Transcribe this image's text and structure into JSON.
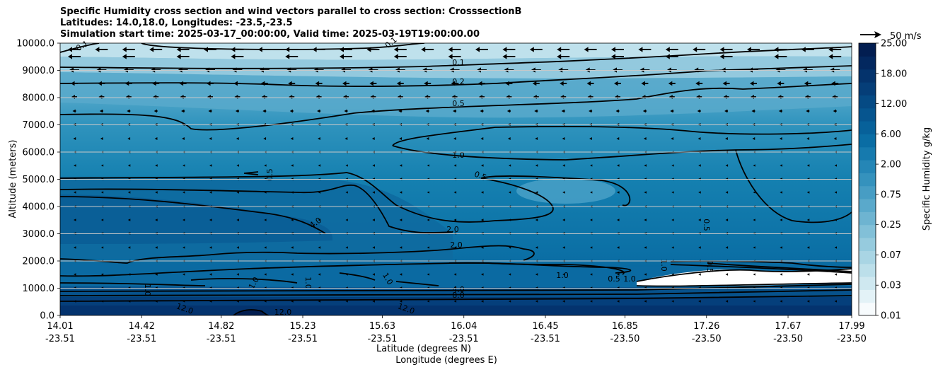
{
  "chart_data": {
    "type": "contour",
    "title_lines": [
      "Specific Humidity cross section and wind vectors parallel to cross section: CrosssectionB",
      "Latitudes: 14.0,18.0, Longitudes: -23.5,-23.5",
      "Simulation start time: 2025-03-17_00:00:00, Valid time: 2025-03-19T19:00:00.00"
    ],
    "ylabel": "Altitude (meters)",
    "xlabel_lines": [
      "Latitude (degrees N)",
      "Longitude (degrees E)"
    ],
    "ylim": [
      0,
      10000
    ],
    "yticks": [
      "0.0",
      "1000.0",
      "2000.0",
      "3000.0",
      "4000.0",
      "5000.0",
      "6000.0",
      "7000.0",
      "8000.0",
      "9000.0",
      "10000.0"
    ],
    "xticks": [
      {
        "lat": "14.01",
        "lon": "-23.51"
      },
      {
        "lat": "14.42",
        "lon": "-23.51"
      },
      {
        "lat": "14.82",
        "lon": "-23.51"
      },
      {
        "lat": "15.23",
        "lon": "-23.51"
      },
      {
        "lat": "15.63",
        "lon": "-23.51"
      },
      {
        "lat": "16.04",
        "lon": "-23.51"
      },
      {
        "lat": "16.45",
        "lon": "-23.51"
      },
      {
        "lat": "16.85",
        "lon": "-23.50"
      },
      {
        "lat": "17.26",
        "lon": "-23.50"
      },
      {
        "lat": "17.67",
        "lon": "-23.50"
      },
      {
        "lat": "17.99",
        "lon": "-23.50"
      }
    ],
    "grid": "horizontal",
    "colorbar": {
      "label": "Specific Humidity g/kg",
      "ticks": [
        "0.01",
        "0.03",
        "0.07",
        "0.25",
        "0.75",
        "2.00",
        "6.00",
        "12.00",
        "18.00",
        "25.00"
      ],
      "colors": [
        "#f7fbfd",
        "#e3f2f7",
        "#cfe8f0",
        "#bcdfea",
        "#a9d5e4",
        "#96cbde",
        "#82c0d8",
        "#6eb4d1",
        "#5aa9cb",
        "#479dc4",
        "#3592bd",
        "#2586b6",
        "#167aae",
        "#0a6da4",
        "#07619a",
        "#06558f",
        "#054a84",
        "#053e78",
        "#04336c",
        "#03285f",
        "#021e51"
      ]
    },
    "contour_labels": [
      "0.1",
      "0.1",
      "0.1",
      "0.2",
      "0.5",
      "1.0",
      "0.5",
      "0.5",
      "4.0",
      "2.0",
      "2.0",
      "0.5",
      "1.0",
      "1.0",
      "1.0",
      "1.0",
      "1.0",
      "0.5",
      "12.0",
      "12.0",
      "12.0",
      "1.0",
      "4.0",
      "8.0",
      "0.5",
      "1.0"
    ],
    "wind_key": "50 m/s"
  }
}
